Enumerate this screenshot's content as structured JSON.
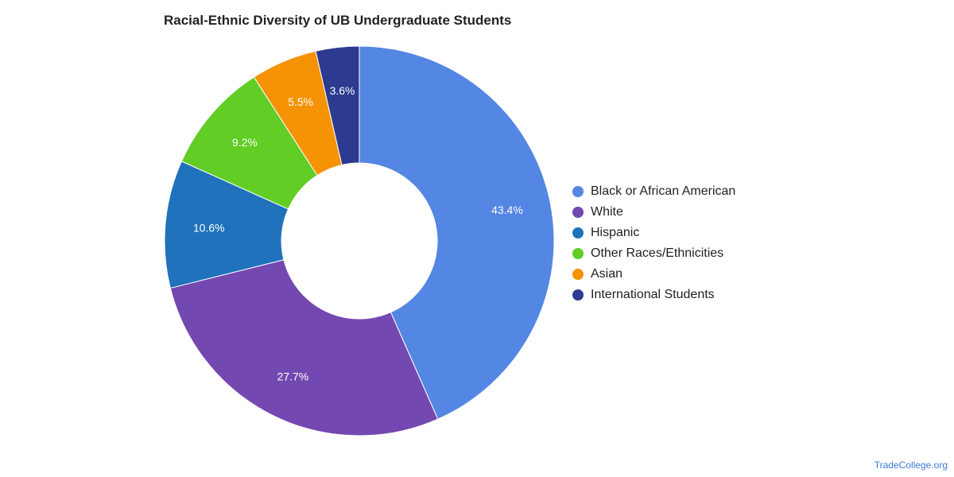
{
  "chart_data": {
    "type": "pie",
    "donut": true,
    "title": "Racial-Ethnic Diversity of UB Undergraduate Students",
    "legend_position": "right",
    "slices": [
      {
        "label": "Black or African American",
        "value": 43.4,
        "display": "43.4%",
        "color": "#5486e4"
      },
      {
        "label": "White",
        "value": 27.7,
        "display": "27.7%",
        "color": "#7448b1"
      },
      {
        "label": "Hispanic",
        "value": 10.6,
        "display": "10.6%",
        "color": "#1f72bb"
      },
      {
        "label": "Other Races/Ethnicities",
        "value": 9.2,
        "display": "9.2%",
        "color": "#61cd25"
      },
      {
        "label": "Asian",
        "value": 5.5,
        "display": "5.5%",
        "color": "#f59305"
      },
      {
        "label": "International Students",
        "value": 3.6,
        "display": "3.6%",
        "color": "#2c3a8f"
      }
    ]
  },
  "source": "TradeCollege.org"
}
